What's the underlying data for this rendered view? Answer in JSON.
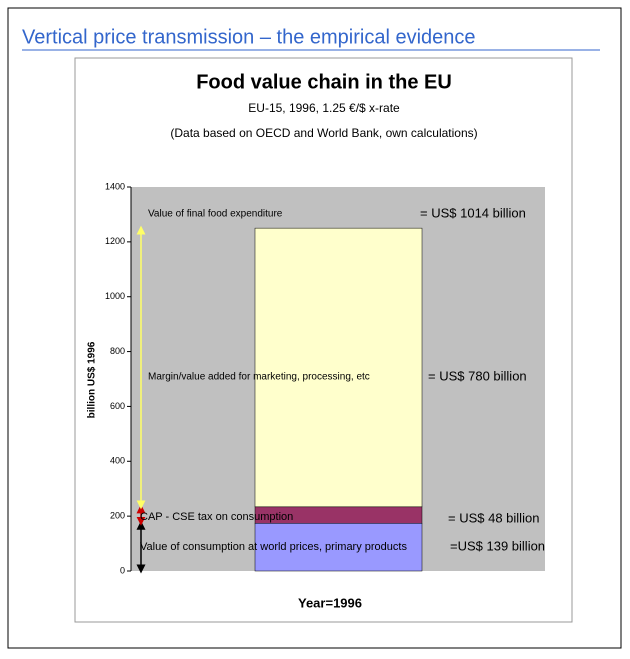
{
  "slide_title": "Vertical price transmission – the empirical evidence",
  "chart_data": {
    "type": "bar",
    "title": "Food value chain in the EU",
    "subtitle": "EU-15, 1996, 1.25 €/$ x-rate",
    "note": "(Data based on OECD and World Bank, own calculations)",
    "ylabel": "billion US$ 1996",
    "xlabel": "Year=1996",
    "categories": [
      null
    ],
    "series": [
      {
        "color": "#9999ff",
        "values": [
          174
        ]
      },
      {
        "color": "#993366",
        "values": [
          60
        ]
      },
      {
        "color": "#ffffcc",
        "values": [
          1016
        ]
      }
    ],
    "ylim": [
      0,
      1400
    ],
    "yticks": [
      0,
      200,
      400,
      600,
      800,
      1000,
      1200,
      1400
    ],
    "annotations": [
      {
        "text": "Value of final food expenditure",
        "amount": "= US$ 1014 billion"
      },
      {
        "text": "Margin/value added for marketing, processing, etc",
        "amount": "= US$ 780 billion"
      },
      {
        "text": "CAP - CSE tax on consumption",
        "amount": "= US$ 48 billion"
      },
      {
        "text": "Value of consumption at world prices, primary products",
        "amount": "=US$ 139 billion"
      }
    ]
  }
}
